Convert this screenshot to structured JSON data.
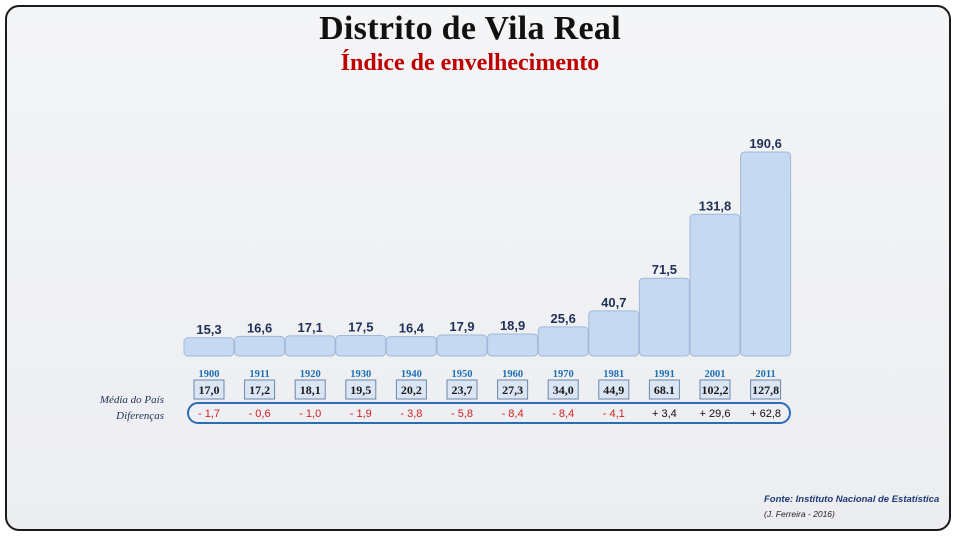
{
  "header": {
    "title": "Distrito de Vila Real",
    "subtitle": "Índice de envelhecimento"
  },
  "labels": {
    "country_avg": "Média do País",
    "differences": "Diferenças"
  },
  "footer": {
    "source": "Fonte: Instituto Nacional de Estatística",
    "author": "(J. Ferreira - 2016)"
  },
  "colors": {
    "bar": "#c5d9f1",
    "bar_stroke": "#9fb8d8",
    "value_label": "#1f2f55",
    "year_label": "#1f6fb5",
    "negative": "#d42020",
    "positive": "#111111",
    "band": "#2a6db3"
  },
  "chart_data": {
    "type": "bar",
    "title": "Distrito de Vila Real",
    "subtitle": "Índice de envelhecimento",
    "categories": [
      "1900",
      "1911",
      "1920",
      "1930",
      "1940",
      "1950",
      "1960",
      "1970",
      "1981",
      "1991",
      "2001",
      "2011"
    ],
    "series": [
      {
        "name": "Vila Real",
        "values": [
          15.3,
          16.6,
          17.1,
          17.5,
          16.4,
          17.9,
          18.9,
          25.6,
          40.7,
          71.5,
          131.8,
          190.6
        ],
        "labels": [
          "15,3",
          "16,6",
          "17,1",
          "17,5",
          "16,4",
          "17,9",
          "18,9",
          "25,6",
          "40,7",
          "71,5",
          "131,8",
          "190,6"
        ]
      }
    ],
    "country_average": [
      "17,0",
      "17,2",
      "18,1",
      "19,5",
      "20,2",
      "23,7",
      "27,3",
      "34,0",
      "44,9",
      "68.1",
      "102,2",
      "127,8"
    ],
    "differences": [
      "- 1,7",
      "- 0,6",
      "- 1,0",
      "- 1,9",
      "- 3,8",
      "- 5,8",
      "- 8,4",
      "- 8,4",
      "- 4,1",
      "+ 3,4",
      "+ 29,6",
      "+ 62,8"
    ],
    "xlabel": "",
    "ylabel": "",
    "ylim": [
      0,
      200
    ],
    "grid": false
  }
}
